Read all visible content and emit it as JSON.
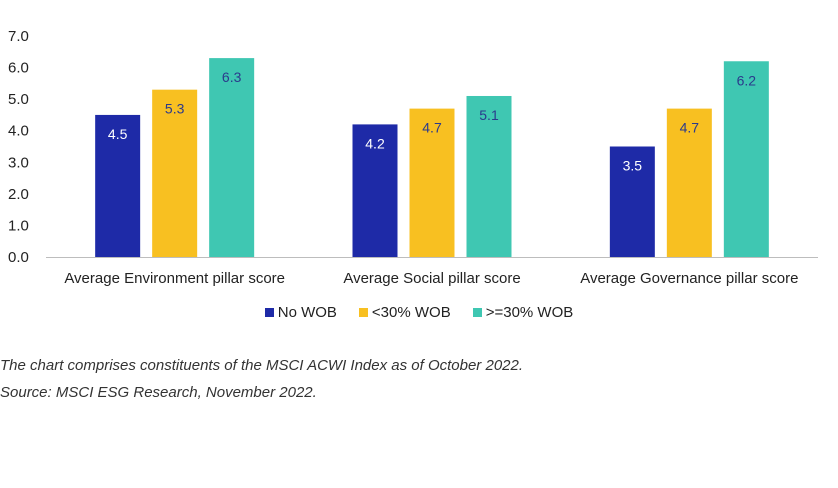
{
  "chart_data": {
    "type": "bar",
    "categories": [
      "Average Environment pillar score",
      "Average Social pillar score",
      "Average Governance pillar score"
    ],
    "series": [
      {
        "name": "No WOB",
        "values": [
          4.5,
          4.2,
          3.5
        ],
        "color": "#1E2AA7",
        "labelColor": "#ffffff",
        "labels": [
          "4.5",
          "4.2",
          "3.5"
        ]
      },
      {
        "name": "<30% WOB",
        "values": [
          5.3,
          4.7,
          4.7
        ],
        "color": "#F8C021",
        "labelColor": "#2B3A8C",
        "labels": [
          "5.3",
          "4.7",
          "4.7"
        ]
      },
      {
        "name": ">=30% WOB",
        "values": [
          6.3,
          5.1,
          6.2
        ],
        "color": "#3FC7B2",
        "labelColor": "#2B3A8C",
        "labels": [
          "6.3",
          "5.1",
          "6.2"
        ]
      }
    ],
    "yticks": [
      "0.0",
      "1.0",
      "2.0",
      "3.0",
      "4.0",
      "5.0",
      "6.0",
      "7.0"
    ],
    "ylim": [
      0,
      7
    ],
    "grid": false,
    "legend": "bottom"
  },
  "notes": {
    "line1": "The chart comprises constituents of the MSCI ACWI Index as of October 2022.",
    "line2": "Source: MSCI ESG Research, November 2022."
  }
}
